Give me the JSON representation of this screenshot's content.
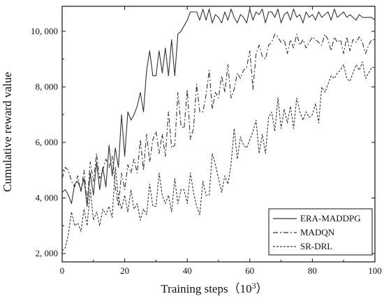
{
  "chart_data": {
    "type": "line",
    "title": "",
    "xlabel": "Training steps（10",
    "xlabel_sup": "3",
    "xlabel_suffix": "）",
    "ylabel": "Cumulative reward value",
    "xlim": [
      0,
      100
    ],
    "ylim": [
      1700,
      10900
    ],
    "x_ticks": [
      0,
      20,
      40,
      60,
      80,
      100
    ],
    "x_tick_labels": [
      "0",
      "20",
      "40",
      "60",
      "80",
      "100"
    ],
    "y_ticks": [
      2000,
      4000,
      6000,
      8000,
      10000
    ],
    "y_tick_labels": [
      "2, 000",
      "4, 000",
      "6, 000",
      "8, 000",
      "10, 000"
    ],
    "grid": false,
    "legend_position": "bottom-right",
    "series": [
      {
        "name": "ERA-MADDPG",
        "style": "solid",
        "x": [
          0,
          1,
          2,
          3,
          4,
          5,
          6,
          7,
          8,
          9,
          10,
          11,
          12,
          13,
          14,
          15,
          16,
          17,
          18,
          19,
          20,
          21,
          22,
          23,
          24,
          25,
          26,
          27,
          28,
          29,
          30,
          31,
          32,
          33,
          34,
          35,
          36,
          37,
          38,
          39,
          40,
          41,
          42,
          43,
          44,
          45,
          46,
          47,
          48,
          49,
          50,
          51,
          52,
          53,
          54,
          55,
          56,
          57,
          58,
          59,
          60,
          61,
          62,
          63,
          64,
          65,
          66,
          67,
          68,
          69,
          70,
          71,
          72,
          73,
          74,
          75,
          76,
          77,
          78,
          79,
          80,
          81,
          82,
          83,
          84,
          85,
          86,
          87,
          88,
          89,
          90,
          91,
          92,
          93,
          94,
          95,
          96,
          97,
          98,
          99,
          100
        ],
        "values": [
          4200,
          4300,
          4100,
          3800,
          4500,
          4600,
          4300,
          4700,
          3700,
          4900,
          4100,
          5300,
          4300,
          5100,
          4400,
          5900,
          4800,
          5800,
          5100,
          7000,
          5500,
          7100,
          6800,
          7000,
          7300,
          7800,
          7100,
          8600,
          9300,
          8400,
          8400,
          9300,
          8500,
          9400,
          8400,
          9700,
          8400,
          9900,
          10000,
          10200,
          10400,
          10700,
          10700,
          10700,
          10400,
          10800,
          10400,
          10800,
          10300,
          10600,
          10500,
          10300,
          10700,
          10400,
          10800,
          10500,
          10300,
          10600,
          10500,
          10300,
          10800,
          10400,
          10700,
          10600,
          10800,
          10300,
          10700,
          10700,
          10500,
          10800,
          10300,
          10600,
          10700,
          10400,
          10800,
          10500,
          10600,
          10300,
          10700,
          10500,
          10600,
          10400,
          10700,
          10500,
          10600,
          10700,
          10400,
          10800,
          10500,
          10600,
          10700,
          10500,
          10600,
          10500,
          10400,
          10600,
          10500,
          10500,
          10500,
          10500,
          10400
        ]
      },
      {
        "name": "MADQN",
        "style": "dashdot",
        "x": [
          0,
          1,
          2,
          3,
          4,
          5,
          6,
          7,
          8,
          9,
          10,
          11,
          12,
          13,
          14,
          15,
          16,
          17,
          18,
          19,
          20,
          21,
          22,
          23,
          24,
          25,
          26,
          27,
          28,
          29,
          30,
          31,
          32,
          33,
          34,
          35,
          36,
          37,
          38,
          39,
          40,
          41,
          42,
          43,
          44,
          45,
          46,
          47,
          48,
          49,
          50,
          51,
          52,
          53,
          54,
          55,
          56,
          57,
          58,
          59,
          60,
          61,
          62,
          63,
          64,
          65,
          66,
          67,
          68,
          69,
          70,
          71,
          72,
          73,
          74,
          75,
          76,
          77,
          78,
          79,
          80,
          81,
          82,
          83,
          84,
          85,
          86,
          87,
          88,
          89,
          90,
          91,
          92,
          93,
          94,
          95,
          96,
          97,
          98,
          99,
          100
        ],
        "values": [
          4700,
          5100,
          5000,
          4600,
          4400,
          4800,
          4200,
          5000,
          3800,
          5300,
          4600,
          5600,
          4700,
          5000,
          5400,
          5100,
          5500,
          4400,
          3700,
          4900,
          4300,
          5200,
          4900,
          5400,
          4900,
          6100,
          5000,
          6300,
          5300,
          6100,
          6400,
          5600,
          6300,
          5500,
          7100,
          5800,
          5900,
          7800,
          6600,
          6500,
          7900,
          6100,
          6500,
          8100,
          7100,
          7100,
          7700,
          8600,
          7200,
          7800,
          7600,
          8400,
          7800,
          8800,
          7600,
          7900,
          8500,
          8300,
          8600,
          8700,
          9300,
          7900,
          9200,
          9500,
          9100,
          9000,
          9500,
          9600,
          9900,
          9800,
          9600,
          9700,
          9200,
          9700,
          9400,
          9900,
          9500,
          9700,
          9400,
          9600,
          9800,
          9700,
          9600,
          9500,
          9900,
          9700,
          9300,
          9800,
          9600,
          9700,
          9200,
          9800,
          9300,
          9700,
          9600,
          9800,
          9600,
          9200,
          9500,
          9700,
          9700
        ]
      },
      {
        "name": "SR-DRL",
        "style": "dashed",
        "x": [
          0,
          1,
          2,
          3,
          4,
          5,
          6,
          7,
          8,
          9,
          10,
          11,
          12,
          13,
          14,
          15,
          16,
          17,
          18,
          19,
          20,
          21,
          22,
          23,
          24,
          25,
          26,
          27,
          28,
          29,
          30,
          31,
          32,
          33,
          34,
          35,
          36,
          37,
          38,
          39,
          40,
          41,
          42,
          43,
          44,
          45,
          46,
          47,
          48,
          49,
          50,
          51,
          52,
          53,
          54,
          55,
          56,
          57,
          58,
          59,
          60,
          61,
          62,
          63,
          64,
          65,
          66,
          67,
          68,
          69,
          70,
          71,
          72,
          73,
          74,
          75,
          76,
          77,
          78,
          79,
          80,
          81,
          82,
          83,
          84,
          85,
          86,
          87,
          88,
          89,
          90,
          91,
          92,
          93,
          94,
          95,
          96,
          97,
          98,
          99,
          100
        ],
        "values": [
          2100,
          2200,
          2700,
          3500,
          3000,
          3100,
          2800,
          3600,
          3000,
          4300,
          3200,
          3500,
          3000,
          3600,
          3400,
          3700,
          3300,
          5100,
          4000,
          3600,
          4100,
          3500,
          4300,
          3600,
          3800,
          3200,
          3600,
          3400,
          4500,
          3700,
          3700,
          4900,
          4100,
          3800,
          4100,
          3500,
          4700,
          3800,
          4300,
          4300,
          3800,
          4900,
          4200,
          3700,
          3400,
          4600,
          4100,
          4100,
          5600,
          5200,
          4700,
          4200,
          4800,
          4500,
          5200,
          6500,
          5400,
          6200,
          5900,
          5800,
          6100,
          6400,
          6800,
          5600,
          6300,
          5600,
          6900,
          7100,
          6400,
          7600,
          6500,
          7200,
          6700,
          7300,
          6500,
          7600,
          7100,
          6800,
          7100,
          6900,
          7000,
          7400,
          6700,
          8000,
          7800,
          8100,
          8400,
          8300,
          8500,
          8600,
          8800,
          8300,
          8200,
          8500,
          8800,
          8600,
          8900,
          8300,
          8500,
          8700,
          8700
        ]
      }
    ]
  }
}
